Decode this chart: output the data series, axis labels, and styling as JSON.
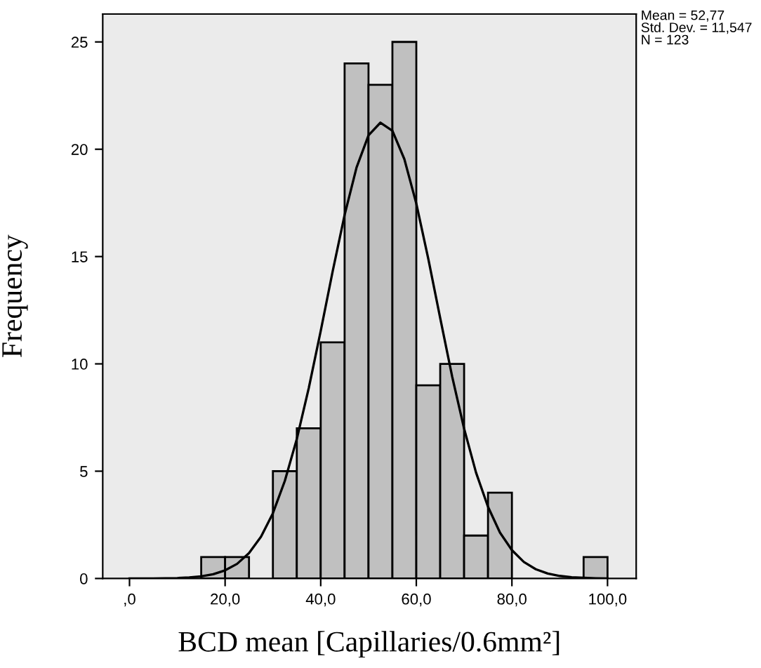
{
  "chart_data": {
    "type": "histogram",
    "xlabel": "BCD mean [Capillaries/0.6mm²]",
    "ylabel": "Frequency",
    "annotations": [
      "Mean = 52,77\nStd. Dev. = 11,547\nN = 123"
    ],
    "bins": [
      15,
      20,
      25,
      30,
      35,
      40,
      45,
      50,
      55,
      60,
      65,
      70,
      75,
      80,
      85,
      90,
      95,
      100
    ],
    "values": [
      1,
      1,
      0,
      5,
      7,
      11,
      24,
      23,
      25,
      9,
      10,
      2,
      4,
      0,
      0,
      0,
      1
    ],
    "color": "#c0c0c0",
    "series": [
      {
        "type": "line",
        "color": "#000000",
        "x": [
          0,
          5,
          7.5,
          10,
          12.5,
          15,
          17.5,
          20,
          22.5,
          25,
          27.5,
          30,
          32.5,
          35,
          37.5,
          40,
          42.5,
          45,
          47.5,
          50,
          52.5,
          55,
          57.5,
          60,
          62.5,
          65,
          67.5,
          70,
          72.5,
          75,
          77.5,
          80,
          82.5,
          85,
          87.5,
          90,
          92.5,
          95,
          97.5,
          100
        ],
        "values": [
          0,
          0,
          0.01,
          0.02,
          0.05,
          0.1,
          0.2,
          0.38,
          0.68,
          1.18,
          1.94,
          3.04,
          4.55,
          6.5,
          8.87,
          11.53,
          14.31,
          16.94,
          19.15,
          20.65,
          21.24,
          20.86,
          19.54,
          17.47,
          14.9,
          12.13,
          9.41,
          6.98,
          4.93,
          3.34,
          2.14,
          1.32,
          0.77,
          0.43,
          0.23,
          0.12,
          0.06,
          0.03,
          0.01,
          0
        ]
      }
    ],
    "xlim": [
      -5.6,
      106
    ],
    "ylim": [
      0,
      26.3
    ],
    "xticks": [
      {
        "value": 0,
        "label": ",0"
      },
      {
        "value": 20,
        "label": "20,0"
      },
      {
        "value": 40,
        "label": "40,0"
      },
      {
        "value": 60,
        "label": "60,0"
      },
      {
        "value": 80,
        "label": "80,0"
      },
      {
        "value": 100,
        "label": "100,0"
      }
    ],
    "yticks": [
      0,
      5,
      10,
      15,
      20,
      25
    ],
    "grid": false
  }
}
